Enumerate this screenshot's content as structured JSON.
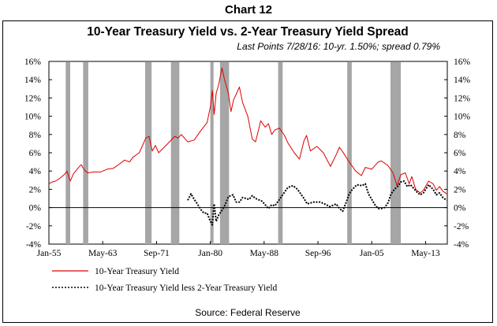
{
  "header": {
    "chart_number": "Chart 12"
  },
  "footer": {
    "source": "Source: Federal Reserve"
  },
  "colors": {
    "recession": "#a6a6a6",
    "ten_year": "#e00000",
    "spread": "#000000"
  },
  "chart_data": {
    "type": "line",
    "title": "10-Year Treasury Yield vs. 2-Year Treasury Yield Spread",
    "subtitle": "Last Points  7/28/16:  10-yr.  1.50%;  spread  0.79%",
    "xlabel": "",
    "ylabel": "",
    "x_range": [
      1955.0,
      2016.7
    ],
    "ylim": [
      -4,
      16
    ],
    "y_ticks": [
      -4,
      -2,
      0,
      2,
      4,
      6,
      8,
      10,
      12,
      14,
      16
    ],
    "y_tick_labels": [
      "-4%",
      "-2%",
      "0%",
      "2%",
      "4%",
      "6%",
      "8%",
      "10%",
      "12%",
      "14%",
      "16%"
    ],
    "x_ticks": [
      {
        "x": 1955.0,
        "label": "Jan-55"
      },
      {
        "x": 1963.33,
        "label": "May-63"
      },
      {
        "x": 1971.67,
        "label": "Sep-71"
      },
      {
        "x": 1980.0,
        "label": "Jan-80"
      },
      {
        "x": 1988.33,
        "label": "May-88"
      },
      {
        "x": 1996.67,
        "label": "Sep-96"
      },
      {
        "x": 2005.0,
        "label": "Jan-05"
      },
      {
        "x": 2013.33,
        "label": "May-13"
      }
    ],
    "grid": false,
    "legend_position": "bottom-left",
    "recessions": [
      [
        1957.6,
        1958.3
      ],
      [
        1960.3,
        1961.1
      ],
      [
        1969.9,
        1970.9
      ],
      [
        1973.9,
        1975.2
      ],
      [
        1980.0,
        1980.5
      ],
      [
        1981.5,
        1982.9
      ],
      [
        1990.5,
        1991.2
      ],
      [
        2001.2,
        2001.9
      ],
      [
        2007.9,
        2009.5
      ]
    ],
    "series": [
      {
        "name": "10-Year Treasury Yield",
        "style": "solid",
        "points": [
          [
            1955.0,
            2.6
          ],
          [
            1955.5,
            2.8
          ],
          [
            1956.0,
            2.9
          ],
          [
            1956.5,
            3.1
          ],
          [
            1957.0,
            3.4
          ],
          [
            1957.5,
            3.7
          ],
          [
            1957.8,
            4.0
          ],
          [
            1958.3,
            2.9
          ],
          [
            1958.8,
            3.7
          ],
          [
            1959.5,
            4.3
          ],
          [
            1960.0,
            4.7
          ],
          [
            1960.5,
            4.1
          ],
          [
            1961.0,
            3.8
          ],
          [
            1962.0,
            3.9
          ],
          [
            1963.0,
            3.9
          ],
          [
            1964.0,
            4.2
          ],
          [
            1965.0,
            4.3
          ],
          [
            1966.0,
            4.8
          ],
          [
            1966.7,
            5.2
          ],
          [
            1967.5,
            5.0
          ],
          [
            1968.0,
            5.5
          ],
          [
            1969.0,
            6.0
          ],
          [
            1970.0,
            7.6
          ],
          [
            1970.5,
            7.8
          ],
          [
            1971.0,
            6.2
          ],
          [
            1971.5,
            6.8
          ],
          [
            1972.0,
            6.0
          ],
          [
            1973.0,
            6.7
          ],
          [
            1974.5,
            7.8
          ],
          [
            1975.0,
            7.6
          ],
          [
            1975.5,
            8.0
          ],
          [
            1976.5,
            7.2
          ],
          [
            1977.5,
            7.4
          ],
          [
            1978.5,
            8.4
          ],
          [
            1979.5,
            9.3
          ],
          [
            1980.0,
            11.0
          ],
          [
            1980.3,
            12.8
          ],
          [
            1980.6,
            10.2
          ],
          [
            1980.9,
            12.5
          ],
          [
            1981.3,
            13.5
          ],
          [
            1981.8,
            15.3
          ],
          [
            1982.2,
            14.0
          ],
          [
            1982.8,
            12.5
          ],
          [
            1983.2,
            10.5
          ],
          [
            1983.6,
            11.8
          ],
          [
            1984.5,
            13.2
          ],
          [
            1985.0,
            11.5
          ],
          [
            1985.8,
            10.0
          ],
          [
            1986.5,
            7.5
          ],
          [
            1987.0,
            7.2
          ],
          [
            1987.5,
            8.6
          ],
          [
            1987.8,
            9.5
          ],
          [
            1988.5,
            8.8
          ],
          [
            1989.0,
            9.2
          ],
          [
            1989.5,
            8.0
          ],
          [
            1990.0,
            8.5
          ],
          [
            1990.7,
            8.7
          ],
          [
            1991.5,
            7.9
          ],
          [
            1992.0,
            7.1
          ],
          [
            1993.0,
            6.0
          ],
          [
            1993.8,
            5.3
          ],
          [
            1994.5,
            7.3
          ],
          [
            1994.9,
            7.9
          ],
          [
            1995.5,
            6.2
          ],
          [
            1996.5,
            6.7
          ],
          [
            1997.5,
            6.0
          ],
          [
            1998.6,
            4.5
          ],
          [
            1999.5,
            5.8
          ],
          [
            2000.0,
            6.6
          ],
          [
            2000.5,
            6.1
          ],
          [
            2001.5,
            5.0
          ],
          [
            2002.5,
            4.0
          ],
          [
            2003.4,
            3.5
          ],
          [
            2004.0,
            4.4
          ],
          [
            2005.0,
            4.2
          ],
          [
            2006.0,
            5.0
          ],
          [
            2006.5,
            5.1
          ],
          [
            2007.5,
            4.6
          ],
          [
            2008.3,
            3.8
          ],
          [
            2008.9,
            2.4
          ],
          [
            2009.5,
            3.6
          ],
          [
            2010.2,
            3.8
          ],
          [
            2010.8,
            2.6
          ],
          [
            2011.2,
            3.4
          ],
          [
            2011.8,
            2.0
          ],
          [
            2012.5,
            1.6
          ],
          [
            2013.0,
            1.9
          ],
          [
            2013.8,
            2.9
          ],
          [
            2014.5,
            2.6
          ],
          [
            2015.0,
            1.9
          ],
          [
            2015.5,
            2.3
          ],
          [
            2016.0,
            1.8
          ],
          [
            2016.6,
            1.5
          ]
        ]
      },
      {
        "name": "10-Year Treasury Yield less 2-Year Treasury Yield",
        "style": "dotted",
        "points": [
          [
            1976.5,
            0.8
          ],
          [
            1977.0,
            1.5
          ],
          [
            1977.5,
            0.9
          ],
          [
            1978.0,
            0.4
          ],
          [
            1978.5,
            -0.2
          ],
          [
            1979.0,
            -0.6
          ],
          [
            1979.5,
            -0.6
          ],
          [
            1980.0,
            -1.5
          ],
          [
            1980.3,
            -1.9
          ],
          [
            1980.6,
            0.4
          ],
          [
            1980.9,
            -1.5
          ],
          [
            1981.3,
            -0.8
          ],
          [
            1981.8,
            -0.3
          ],
          [
            1982.3,
            0.3
          ],
          [
            1982.8,
            1.2
          ],
          [
            1983.5,
            1.4
          ],
          [
            1984.0,
            0.6
          ],
          [
            1984.5,
            0.6
          ],
          [
            1985.0,
            1.1
          ],
          [
            1986.0,
            0.9
          ],
          [
            1986.5,
            1.3
          ],
          [
            1987.0,
            1.0
          ],
          [
            1988.0,
            0.7
          ],
          [
            1988.5,
            0.3
          ],
          [
            1989.0,
            -0.1
          ],
          [
            1989.5,
            0.3
          ],
          [
            1990.0,
            0.2
          ],
          [
            1991.0,
            1.2
          ],
          [
            1992.0,
            2.2
          ],
          [
            1992.8,
            2.4
          ],
          [
            1993.5,
            2.0
          ],
          [
            1994.5,
            1.0
          ],
          [
            1995.0,
            0.4
          ],
          [
            1996.0,
            0.6
          ],
          [
            1997.0,
            0.6
          ],
          [
            1998.0,
            0.3
          ],
          [
            1998.5,
            0.1
          ],
          [
            1999.5,
            0.4
          ],
          [
            2000.0,
            -0.1
          ],
          [
            2000.5,
            -0.4
          ],
          [
            2001.0,
            0.5
          ],
          [
            2001.5,
            1.5
          ],
          [
            2002.0,
            2.0
          ],
          [
            2002.7,
            2.5
          ],
          [
            2003.5,
            2.4
          ],
          [
            2004.0,
            2.6
          ],
          [
            2004.5,
            1.5
          ],
          [
            2005.0,
            0.9
          ],
          [
            2005.5,
            0.3
          ],
          [
            2006.0,
            -0.1
          ],
          [
            2006.5,
            -0.1
          ],
          [
            2007.0,
            0.0
          ],
          [
            2007.5,
            0.5
          ],
          [
            2008.0,
            1.5
          ],
          [
            2008.5,
            2.0
          ],
          [
            2009.0,
            2.3
          ],
          [
            2009.5,
            2.8
          ],
          [
            2010.0,
            2.9
          ],
          [
            2010.5,
            2.3
          ],
          [
            2011.0,
            2.5
          ],
          [
            2011.5,
            2.1
          ],
          [
            2012.0,
            1.7
          ],
          [
            2012.5,
            1.4
          ],
          [
            2013.0,
            1.6
          ],
          [
            2013.8,
            2.5
          ],
          [
            2014.5,
            2.0
          ],
          [
            2015.0,
            1.4
          ],
          [
            2015.5,
            1.6
          ],
          [
            2016.0,
            1.1
          ],
          [
            2016.6,
            0.79
          ]
        ]
      }
    ]
  }
}
